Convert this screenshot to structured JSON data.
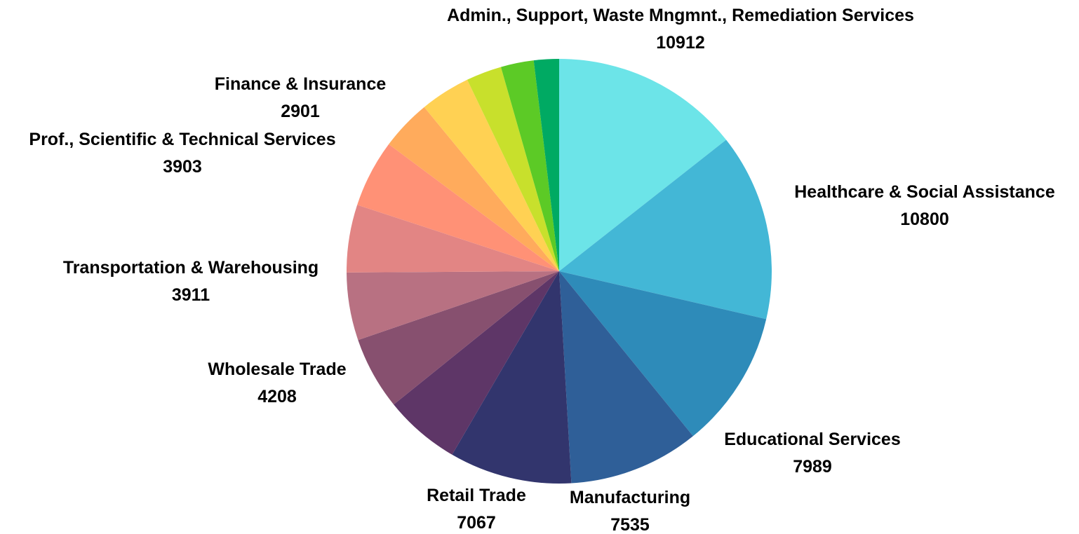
{
  "chart_data": {
    "type": "pie",
    "slices": [
      {
        "label": "Admin., Support, Waste Mngmnt., Remediation Services",
        "value": 10912,
        "color": "#6ce4e8",
        "show_label": true
      },
      {
        "label": "Healthcare & Social Assistance",
        "value": 10800,
        "color": "#43b7d6",
        "show_label": true
      },
      {
        "label": "Educational Services",
        "value": 7989,
        "color": "#2e8bb9",
        "show_label": true
      },
      {
        "label": "Manufacturing",
        "value": 7535,
        "color": "#2f5f98",
        "show_label": true
      },
      {
        "label": "Retail Trade",
        "value": 7067,
        "color": "#32356d",
        "show_label": true
      },
      {
        "label": "",
        "value": 4400,
        "color": "#5e3667",
        "show_label": false
      },
      {
        "label": "Wholesale Trade",
        "value": 4208,
        "color": "#87506f",
        "show_label": true
      },
      {
        "label": "Transportation & Warehousing",
        "value": 3911,
        "color": "#b87182",
        "show_label": true
      },
      {
        "label": "",
        "value": 3910,
        "color": "#e28584",
        "show_label": false
      },
      {
        "label": "Prof., Scientific & Technical Services",
        "value": 3903,
        "color": "#ff9176",
        "show_label": true
      },
      {
        "label": "",
        "value": 2925,
        "color": "#ffab5c",
        "show_label": false
      },
      {
        "label": "Finance & Insurance",
        "value": 2901,
        "color": "#ffd153",
        "show_label": true
      },
      {
        "label": "",
        "value": 2050,
        "color": "#c8e02c",
        "show_label": false
      },
      {
        "label": "",
        "value": 1900,
        "color": "#5cca26",
        "show_label": false
      },
      {
        "label": "",
        "value": 1450,
        "color": "#00aa63",
        "show_label": false
      }
    ]
  }
}
